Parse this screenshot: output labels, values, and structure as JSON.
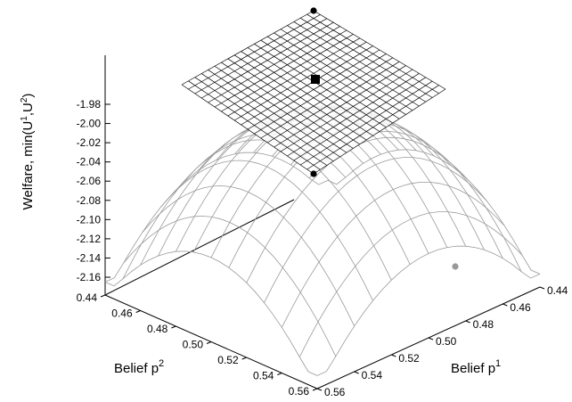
{
  "chart_data": {
    "type": "surface3d",
    "z_axis": {
      "label": "Welfare, min(U",
      "label_sup1": "1",
      "label_mid": ",U",
      "label_sup2": "2",
      "label_end": ")",
      "range": [
        -2.17,
        -1.97
      ],
      "ticks": [
        "-1.98",
        "-2.00",
        "-2.02",
        "-2.04",
        "-2.06",
        "-2.08",
        "-2.10",
        "-2.12",
        "-2.14",
        "-2.16"
      ],
      "tick_values": [
        -1.98,
        -2.0,
        -2.02,
        -2.04,
        -2.06,
        -2.08,
        -2.1,
        -2.12,
        -2.14,
        -2.16
      ]
    },
    "p2_axis": {
      "label": "Belief p",
      "label_sup": "2",
      "range": [
        0.44,
        0.56
      ],
      "ticks": [
        "0.44",
        "0.46",
        "0.48",
        "0.50",
        "0.52",
        "0.54",
        "0.56"
      ],
      "tick_values": [
        0.44,
        0.46,
        0.48,
        0.5,
        0.52,
        0.54,
        0.56
      ]
    },
    "p1_axis": {
      "label": "Belief p",
      "label_sup": "1",
      "range": [
        0.44,
        0.56
      ],
      "ticks": [
        "0.44",
        "0.46",
        "0.48",
        "0.50",
        "0.52",
        "0.54",
        "0.56"
      ],
      "tick_values": [
        0.44,
        0.46,
        0.48,
        0.5,
        0.52,
        0.54,
        0.56
      ]
    },
    "surfaces": [
      {
        "name": "",
        "kind": "plane",
        "z": -2.0,
        "grid_lines": 20,
        "color": "#000000"
      },
      {
        "name": "",
        "kind": "curved",
        "color": "#9a9a9a",
        "z_min": -2.165,
        "z_max": -2.0,
        "p_center": 0.5
      }
    ],
    "points": [
      {
        "p1": 0.5,
        "p2": 0.5,
        "z": -2.0,
        "marker": "square",
        "color": "#000000"
      },
      {
        "p1": 0.44,
        "p2": 0.44,
        "z": -2.0,
        "marker": "circle",
        "color": "#000000"
      },
      {
        "p1": 0.56,
        "p2": 0.56,
        "z": -2.0,
        "marker": "circle",
        "color": "#000000"
      },
      {
        "p1": 0.56,
        "p2": 0.46,
        "z": -2.165,
        "marker": "circle",
        "color": "#999999"
      }
    ]
  }
}
